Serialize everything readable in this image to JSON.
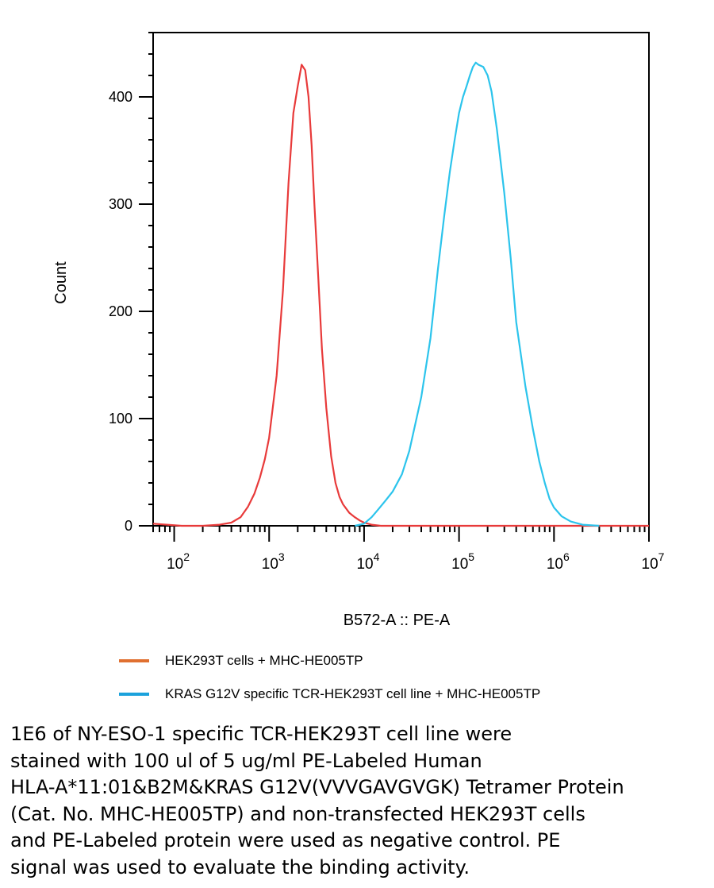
{
  "chart_data": {
    "type": "line",
    "title": "",
    "xlabel": "B572-A :: PE-A",
    "ylabel": "Count",
    "x_scale": "log",
    "xlim": [
      60,
      10000000
    ],
    "ylim": [
      0,
      460
    ],
    "x_ticks": [
      {
        "value": 100,
        "base": "10",
        "exp": "2"
      },
      {
        "value": 1000,
        "base": "10",
        "exp": "3"
      },
      {
        "value": 10000,
        "base": "10",
        "exp": "4"
      },
      {
        "value": 100000,
        "base": "10",
        "exp": "5"
      },
      {
        "value": 1000000,
        "base": "10",
        "exp": "6"
      },
      {
        "value": 10000000,
        "base": "10",
        "exp": "7"
      }
    ],
    "y_ticks": [
      0,
      100,
      200,
      300,
      400
    ],
    "grid": false,
    "legend_position": "bottom",
    "series": [
      {
        "name": "HEK293T cells + MHC-HE005TP",
        "color": "#e83a3a",
        "legend_color": "#e07030",
        "x": [
          60,
          120,
          200,
          300,
          400,
          500,
          600,
          700,
          800,
          900,
          1000,
          1200,
          1400,
          1600,
          1800,
          2000,
          2200,
          2400,
          2600,
          2800,
          3000,
          3300,
          3600,
          4000,
          4500,
          5000,
          5500,
          6000,
          7000,
          8000,
          9000,
          10000,
          12000,
          15000,
          20000,
          100000,
          1000000,
          10000000
        ],
        "y": [
          2,
          0,
          0,
          1,
          3,
          8,
          18,
          30,
          45,
          62,
          82,
          140,
          220,
          320,
          385,
          410,
          430,
          425,
          400,
          355,
          300,
          230,
          165,
          110,
          65,
          40,
          27,
          20,
          12,
          8,
          5,
          3,
          1,
          0,
          0,
          0,
          0,
          0
        ]
      },
      {
        "name": "KRAS G12V specific TCR-HEK293T cell line + MHC-HE005TP",
        "color": "#2cc4ec",
        "legend_color": "#1ba2dc",
        "x": [
          8000,
          10000,
          12000,
          14000,
          17000,
          20000,
          25000,
          30000,
          40000,
          50000,
          60000,
          70000,
          80000,
          90000,
          100000,
          110000,
          120000,
          130000,
          140000,
          150000,
          160000,
          180000,
          200000,
          220000,
          250000,
          300000,
          350000,
          400000,
          500000,
          600000,
          700000,
          800000,
          900000,
          1000000,
          1200000,
          1500000,
          2000000,
          3000000
        ],
        "y": [
          0,
          2,
          8,
          15,
          24,
          32,
          48,
          70,
          120,
          175,
          240,
          290,
          330,
          360,
          385,
          400,
          410,
          420,
          428,
          432,
          430,
          428,
          420,
          405,
          370,
          310,
          250,
          190,
          130,
          90,
          60,
          40,
          25,
          17,
          9,
          4,
          1,
          0
        ]
      }
    ]
  },
  "caption_lines": [
    "1E6 of NY-ESO-1 specific TCR-HEK293T cell line were",
    "stained with 100 ul of 5 ug/ml PE-Labeled Human",
    "HLA-A*11:01&B2M&KRAS G12V(VVVGAVGVGK) Tetramer Protein",
    "(Cat. No. MHC-HE005TP) and non-transfected HEK293T cells",
    "and PE-Labeled protein were used as negative control. PE",
    "signal was used to evaluate the binding activity."
  ]
}
